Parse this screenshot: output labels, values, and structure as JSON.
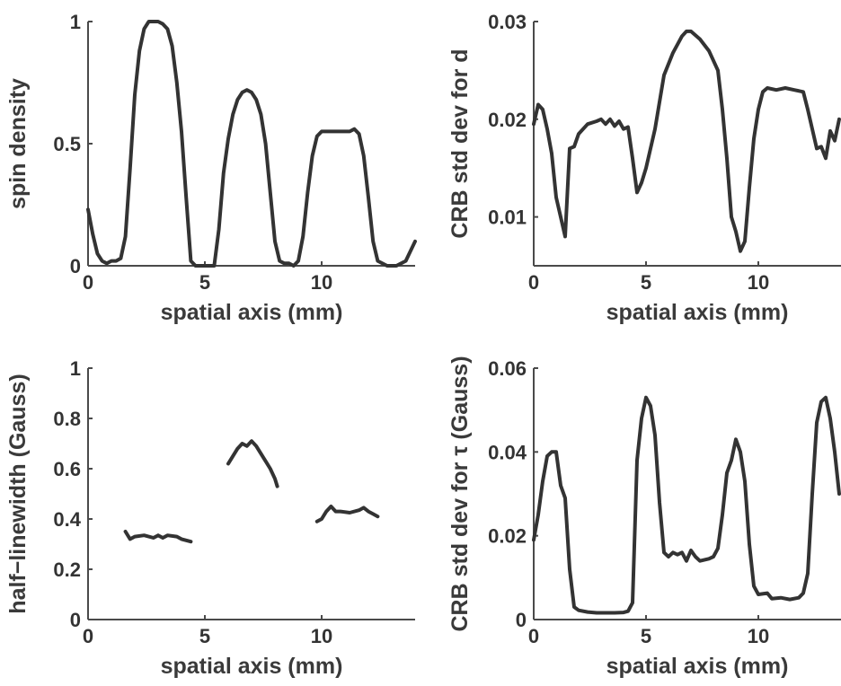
{
  "chart_data": [
    {
      "type": "line",
      "xlabel": "spatial axis (mm)",
      "ylabel": "spin density",
      "xlim": [
        0,
        14
      ],
      "ylim": [
        0,
        1
      ],
      "xticks": [
        0,
        5,
        10
      ],
      "yticks": [
        0,
        0.5,
        1
      ],
      "ytick_labels": [
        "0",
        "0.5",
        "1"
      ],
      "series": [
        {
          "segments": [
            [
              [
                0,
                0.23
              ],
              [
                0.2,
                0.13
              ],
              [
                0.4,
                0.05
              ],
              [
                0.6,
                0.02
              ],
              [
                0.8,
                0.01
              ],
              [
                1.0,
                0.02
              ],
              [
                1.2,
                0.02
              ],
              [
                1.4,
                0.03
              ],
              [
                1.6,
                0.12
              ],
              [
                1.8,
                0.4
              ],
              [
                2.0,
                0.7
              ],
              [
                2.2,
                0.88
              ],
              [
                2.4,
                0.97
              ],
              [
                2.6,
                1.0
              ],
              [
                2.8,
                1.0
              ],
              [
                3.0,
                1.0
              ],
              [
                3.2,
                0.99
              ],
              [
                3.4,
                0.97
              ],
              [
                3.6,
                0.9
              ],
              [
                3.8,
                0.75
              ],
              [
                4.0,
                0.55
              ],
              [
                4.2,
                0.28
              ],
              [
                4.4,
                0.02
              ],
              [
                4.6,
                0.0
              ],
              [
                5.0,
                0.0
              ],
              [
                5.4,
                0.0
              ],
              [
                5.6,
                0.15
              ],
              [
                5.8,
                0.38
              ],
              [
                6.0,
                0.52
              ],
              [
                6.2,
                0.62
              ],
              [
                6.4,
                0.68
              ],
              [
                6.6,
                0.71
              ],
              [
                6.8,
                0.72
              ],
              [
                7.0,
                0.71
              ],
              [
                7.2,
                0.68
              ],
              [
                7.4,
                0.62
              ],
              [
                7.6,
                0.5
              ],
              [
                7.8,
                0.3
              ],
              [
                8.0,
                0.1
              ],
              [
                8.2,
                0.02
              ],
              [
                8.4,
                0.01
              ],
              [
                8.6,
                0.01
              ],
              [
                8.8,
                0.0
              ],
              [
                9.0,
                0.02
              ],
              [
                9.2,
                0.12
              ],
              [
                9.4,
                0.3
              ],
              [
                9.6,
                0.45
              ],
              [
                9.8,
                0.53
              ],
              [
                10.0,
                0.55
              ],
              [
                10.4,
                0.55
              ],
              [
                10.8,
                0.55
              ],
              [
                11.2,
                0.55
              ],
              [
                11.4,
                0.56
              ],
              [
                11.6,
                0.54
              ],
              [
                11.8,
                0.45
              ],
              [
                12.0,
                0.28
              ],
              [
                12.2,
                0.1
              ],
              [
                12.4,
                0.02
              ],
              [
                12.8,
                0.0
              ],
              [
                13.2,
                0.0
              ],
              [
                13.6,
                0.02
              ],
              [
                14,
                0.1
              ]
            ]
          ]
        }
      ]
    },
    {
      "type": "line",
      "xlabel": "spatial axis (mm)",
      "ylabel": "CRB std dev for d",
      "xlim": [
        0,
        14
      ],
      "ylim": [
        0.005,
        0.03
      ],
      "xticks": [
        0,
        5,
        10
      ],
      "yticks": [
        0.01,
        0.02,
        0.03
      ],
      "ytick_labels": [
        "0.01",
        "0.02",
        "0.03"
      ],
      "series": [
        {
          "segments": [
            [
              [
                0,
                0.0195
              ],
              [
                0.2,
                0.0215
              ],
              [
                0.4,
                0.021
              ],
              [
                0.6,
                0.019
              ],
              [
                0.8,
                0.0165
              ],
              [
                1.0,
                0.012
              ],
              [
                1.2,
                0.01
              ],
              [
                1.4,
                0.008
              ],
              [
                1.6,
                0.017
              ],
              [
                1.8,
                0.0172
              ],
              [
                2.0,
                0.0185
              ],
              [
                2.4,
                0.0195
              ],
              [
                2.8,
                0.0198
              ],
              [
                3.0,
                0.02
              ],
              [
                3.2,
                0.0195
              ],
              [
                3.4,
                0.02
              ],
              [
                3.6,
                0.0193
              ],
              [
                3.8,
                0.0198
              ],
              [
                4.0,
                0.019
              ],
              [
                4.2,
                0.0192
              ],
              [
                4.4,
                0.016
              ],
              [
                4.6,
                0.0125
              ],
              [
                4.8,
                0.0135
              ],
              [
                5.0,
                0.015
              ],
              [
                5.4,
                0.019
              ],
              [
                5.8,
                0.0245
              ],
              [
                6.2,
                0.0268
              ],
              [
                6.6,
                0.0285
              ],
              [
                6.8,
                0.029
              ],
              [
                7.0,
                0.029
              ],
              [
                7.4,
                0.0282
              ],
              [
                7.8,
                0.027
              ],
              [
                8.2,
                0.025
              ],
              [
                8.4,
                0.021
              ],
              [
                8.6,
                0.016
              ],
              [
                8.8,
                0.01
              ],
              [
                9.0,
                0.0085
              ],
              [
                9.2,
                0.0065
              ],
              [
                9.4,
                0.0075
              ],
              [
                9.6,
                0.013
              ],
              [
                9.8,
                0.018
              ],
              [
                10.0,
                0.021
              ],
              [
                10.2,
                0.0228
              ],
              [
                10.4,
                0.0232
              ],
              [
                10.8,
                0.023
              ],
              [
                11.2,
                0.0232
              ],
              [
                11.6,
                0.023
              ],
              [
                12.0,
                0.0228
              ],
              [
                12.2,
                0.021
              ],
              [
                12.4,
                0.019
              ],
              [
                12.6,
                0.017
              ],
              [
                12.8,
                0.0172
              ],
              [
                13.0,
                0.016
              ],
              [
                13.2,
                0.0188
              ],
              [
                13.4,
                0.0178
              ],
              [
                13.6,
                0.02
              ]
            ]
          ]
        }
      ]
    },
    {
      "type": "line",
      "xlabel": "spatial axis (mm)",
      "ylabel": "half−linewidth (Gauss)",
      "xlim": [
        0,
        14
      ],
      "ylim": [
        0,
        1
      ],
      "xticks": [
        0,
        5,
        10
      ],
      "yticks": [
        0,
        0.2,
        0.4,
        0.6,
        0.8,
        1
      ],
      "ytick_labels": [
        "0",
        "0.2",
        "0.4",
        "0.6",
        "0.8",
        "1"
      ],
      "series": [
        {
          "segments": [
            [
              [
                1.6,
                0.35
              ],
              [
                1.8,
                0.32
              ],
              [
                2.0,
                0.33
              ],
              [
                2.4,
                0.335
              ],
              [
                2.8,
                0.325
              ],
              [
                3.0,
                0.335
              ],
              [
                3.2,
                0.325
              ],
              [
                3.4,
                0.335
              ],
              [
                3.8,
                0.33
              ],
              [
                4.0,
                0.32
              ],
              [
                4.4,
                0.31
              ]
            ],
            [
              [
                6.0,
                0.62
              ],
              [
                6.4,
                0.68
              ],
              [
                6.6,
                0.7
              ],
              [
                6.8,
                0.69
              ],
              [
                7.0,
                0.71
              ],
              [
                7.2,
                0.69
              ],
              [
                7.4,
                0.66
              ],
              [
                7.6,
                0.63
              ],
              [
                7.8,
                0.6
              ],
              [
                8.0,
                0.56
              ],
              [
                8.1,
                0.53
              ]
            ],
            [
              [
                9.8,
                0.39
              ],
              [
                10.0,
                0.4
              ],
              [
                10.2,
                0.43
              ],
              [
                10.4,
                0.45
              ],
              [
                10.6,
                0.43
              ],
              [
                10.8,
                0.43
              ],
              [
                11.2,
                0.425
              ],
              [
                11.6,
                0.435
              ],
              [
                11.8,
                0.445
              ],
              [
                12.0,
                0.43
              ],
              [
                12.2,
                0.42
              ],
              [
                12.4,
                0.41
              ]
            ]
          ]
        }
      ]
    },
    {
      "type": "line",
      "xlabel": "spatial axis (mm)",
      "ylabel": "CRB std dev for τ (Gauss)",
      "xlim": [
        0,
        14
      ],
      "ylim": [
        0,
        0.06
      ],
      "xticks": [
        0,
        5,
        10
      ],
      "yticks": [
        0,
        0.02,
        0.04,
        0.06
      ],
      "ytick_labels": [
        "0",
        "0.02",
        "0.04",
        "0.06"
      ],
      "series": [
        {
          "segments": [
            [
              [
                0,
                0.019
              ],
              [
                0.2,
                0.025
              ],
              [
                0.4,
                0.033
              ],
              [
                0.6,
                0.039
              ],
              [
                0.8,
                0.04
              ],
              [
                1.0,
                0.04
              ],
              [
                1.2,
                0.032
              ],
              [
                1.4,
                0.029
              ],
              [
                1.6,
                0.012
              ],
              [
                1.8,
                0.003
              ],
              [
                2.0,
                0.0022
              ],
              [
                2.4,
                0.0018
              ],
              [
                2.8,
                0.0016
              ],
              [
                3.2,
                0.0016
              ],
              [
                3.6,
                0.0016
              ],
              [
                4.0,
                0.0017
              ],
              [
                4.2,
                0.002
              ],
              [
                4.4,
                0.004
              ],
              [
                4.6,
                0.038
              ],
              [
                4.8,
                0.048
              ],
              [
                5.0,
                0.053
              ],
              [
                5.2,
                0.051
              ],
              [
                5.4,
                0.044
              ],
              [
                5.6,
                0.028
              ],
              [
                5.8,
                0.016
              ],
              [
                6.0,
                0.015
              ],
              [
                6.2,
                0.016
              ],
              [
                6.4,
                0.0155
              ],
              [
                6.6,
                0.016
              ],
              [
                6.8,
                0.014
              ],
              [
                7.0,
                0.0165
              ],
              [
                7.2,
                0.015
              ],
              [
                7.4,
                0.014
              ],
              [
                7.8,
                0.0145
              ],
              [
                8.0,
                0.015
              ],
              [
                8.2,
                0.017
              ],
              [
                8.4,
                0.025
              ],
              [
                8.6,
                0.035
              ],
              [
                8.8,
                0.038
              ],
              [
                9.0,
                0.043
              ],
              [
                9.2,
                0.04
              ],
              [
                9.4,
                0.033
              ],
              [
                9.6,
                0.018
              ],
              [
                9.8,
                0.008
              ],
              [
                10.0,
                0.006
              ],
              [
                10.4,
                0.0063
              ],
              [
                10.6,
                0.005
              ],
              [
                11.0,
                0.0052
              ],
              [
                11.4,
                0.0048
              ],
              [
                11.8,
                0.0052
              ],
              [
                12.0,
                0.0063
              ],
              [
                12.2,
                0.011
              ],
              [
                12.4,
                0.03
              ],
              [
                12.6,
                0.047
              ],
              [
                12.8,
                0.052
              ],
              [
                13.0,
                0.053
              ],
              [
                13.2,
                0.048
              ],
              [
                13.4,
                0.04
              ],
              [
                13.6,
                0.03
              ]
            ]
          ]
        }
      ]
    }
  ]
}
